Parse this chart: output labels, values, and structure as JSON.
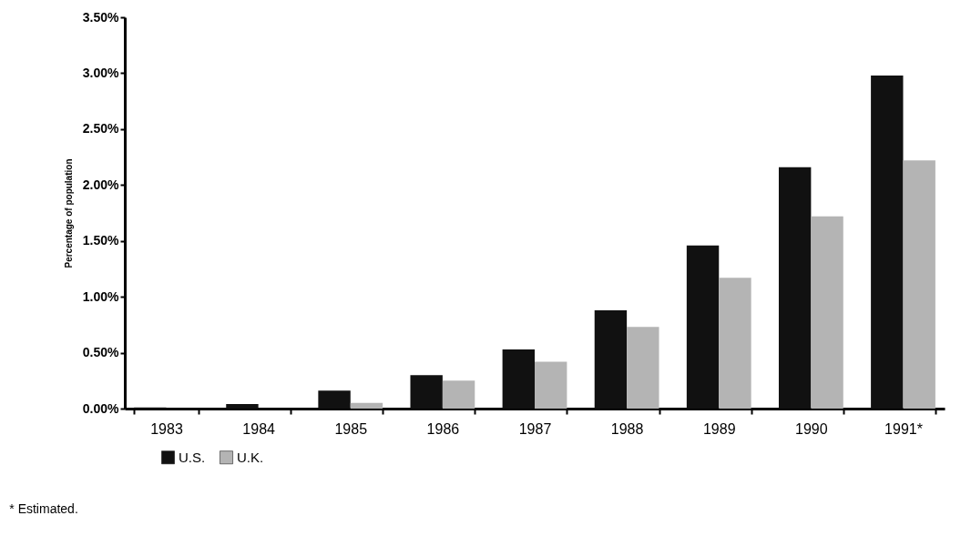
{
  "chart_data": {
    "type": "bar",
    "ylabel": "Percentage of population",
    "categories": [
      "1983",
      "1984",
      "1985",
      "1986",
      "1987",
      "1988",
      "1989",
      "1990",
      "1991*"
    ],
    "series": [
      {
        "name": "U.S.",
        "color": "#111111",
        "values": [
          0.01,
          0.04,
          0.16,
          0.3,
          0.53,
          0.88,
          1.46,
          2.16,
          2.98
        ]
      },
      {
        "name": "U.K.",
        "color": "#b4b4b4",
        "values": [
          null,
          null,
          0.05,
          0.25,
          0.42,
          0.73,
          1.17,
          1.72,
          2.22
        ]
      }
    ],
    "ylim": [
      0,
      3.5
    ],
    "yticks": [
      {
        "value": 0,
        "label": "0.00%"
      },
      {
        "value": 0.5,
        "label": "0.50%"
      },
      {
        "value": 1,
        "label": "1.00%"
      },
      {
        "value": 1.5,
        "label": "1.50%"
      },
      {
        "value": 2,
        "label": "2.00%"
      },
      {
        "value": 2.5,
        "label": "2.50%"
      },
      {
        "value": 3,
        "label": "3.00%"
      },
      {
        "value": 3.5,
        "label": "3.50%"
      }
    ],
    "legend": "bottom left",
    "grid": false,
    "annotations": [
      "* Estimated."
    ]
  }
}
